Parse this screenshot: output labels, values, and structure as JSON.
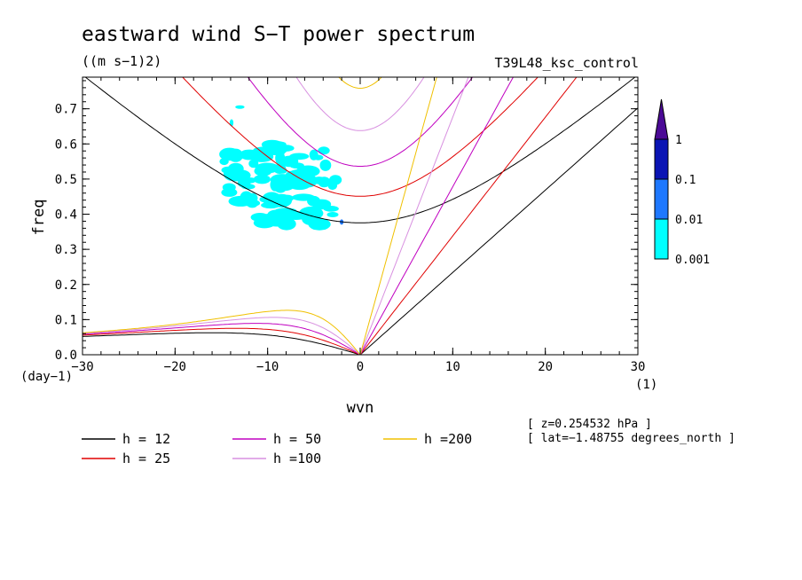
{
  "header": {
    "title": "eastward wind S−T power spectrum",
    "units": "((m s−1)2)",
    "experiment": "T39L48_ksc_control"
  },
  "chart_data": {
    "type": "contour",
    "title": "eastward wind S−T power spectrum",
    "xlabel": "wvn",
    "ylabel": "freq",
    "x_unit_label": "(1)",
    "y_unit_label": "(day−1)",
    "xlim": [
      -30,
      30
    ],
    "ylim": [
      0,
      0.79
    ],
    "xticks": [
      -30,
      -20,
      -10,
      0,
      10,
      20,
      30
    ],
    "xtick_labels": [
      "−30",
      "−20",
      "−10",
      "0",
      "10",
      "20",
      "30"
    ],
    "yticks": [
      0,
      0.1,
      0.2,
      0.3,
      0.4,
      0.5,
      0.6,
      0.7
    ],
    "ytick_labels": [
      "0.0",
      "0.1",
      "0.2",
      "0.3",
      "0.4",
      "0.5",
      "0.6",
      "0.7"
    ],
    "colorbar": {
      "levels": [
        "0.001",
        "0.01",
        "0.1",
        "1"
      ],
      "colors": [
        "#00ffff",
        "#1e78ff",
        "#0a14b4",
        "#4b0a96"
      ]
    },
    "dispersion_curves": [
      {
        "name": "h = 12",
        "h": 12,
        "color": "#000000"
      },
      {
        "name": "h = 25",
        "h": 25,
        "color": "#e00000"
      },
      {
        "name": "h = 50",
        "h": 50,
        "color": "#c000c0"
      },
      {
        "name": "h =100",
        "h": 100,
        "color": "#d890e0"
      },
      {
        "name": "h =200",
        "h": 200,
        "color": "#f0c000"
      }
    ],
    "power_regions": [
      {
        "level": "0.001",
        "x": [
          -14.5,
          -2.5
        ],
        "y": [
          0.37,
          0.6
        ]
      },
      {
        "level": "0.001",
        "x": [
          -15.2,
          -14.2
        ],
        "y": [
          0.54,
          0.56
        ]
      },
      {
        "level": "0.001",
        "x": [
          -13.5,
          -12.5
        ],
        "y": [
          0.7,
          0.71
        ]
      },
      {
        "level": "0.001",
        "x": [
          -14.1,
          -13.7
        ],
        "y": [
          0.65,
          0.67
        ]
      },
      {
        "level": "0.01",
        "x": [
          -2.2,
          -1.8
        ],
        "y": [
          0.37,
          0.385
        ]
      }
    ]
  },
  "legend": {
    "items": [
      {
        "label": "h = 12",
        "color": "#000000"
      },
      {
        "label": "h = 50",
        "color": "#c000c0"
      },
      {
        "label": "h =200",
        "color": "#f0c000"
      },
      {
        "label": "h = 25",
        "color": "#e00000"
      },
      {
        "label": "h =100",
        "color": "#d890e0"
      }
    ]
  },
  "info": {
    "z": "[ z=0.254532 hPa ]",
    "lat": "[ lat=−1.48755 degrees_north ]"
  }
}
